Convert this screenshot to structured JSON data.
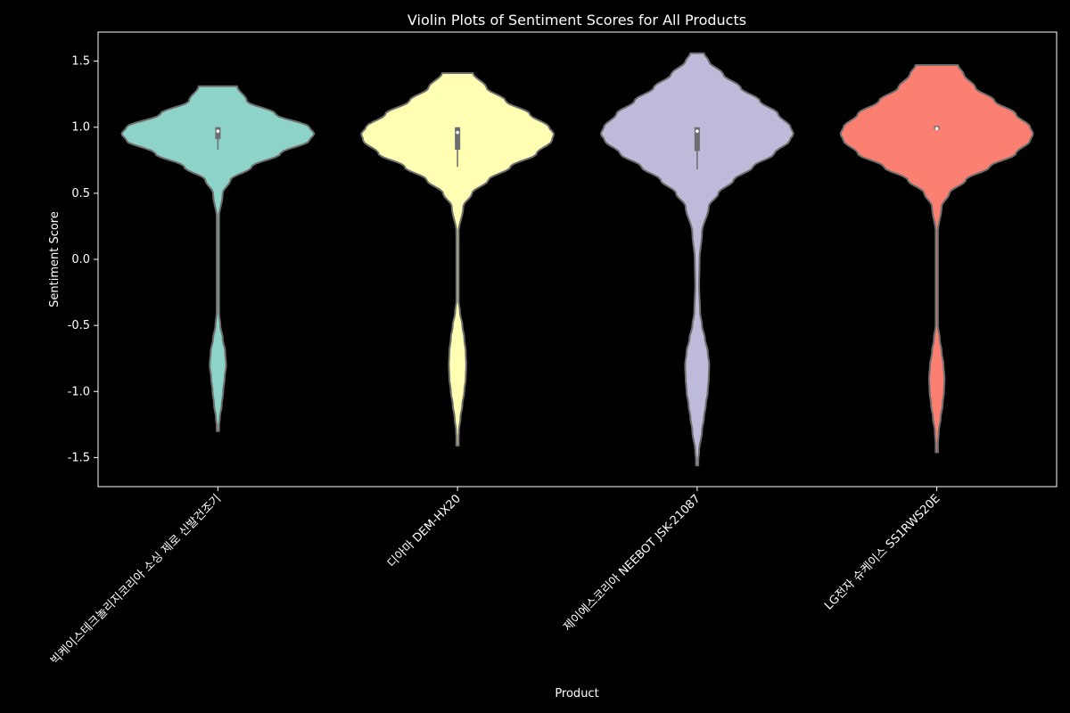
{
  "chart_data": {
    "type": "violin",
    "title": "Violin Plots of Sentiment Scores for All Products",
    "xlabel": "Product",
    "ylabel": "Sentiment Score",
    "ylim": [
      -1.72,
      1.72
    ],
    "yticks": [
      -1.5,
      -1.0,
      -0.5,
      0.0,
      0.5,
      1.0,
      1.5
    ],
    "ytick_labels": [
      "-1.5",
      "-1.0",
      "-0.5",
      "0.0",
      "0.5",
      "1.0",
      "1.5"
    ],
    "grid": false,
    "categories": [
      "빅케이스테크놀리지코리아 소싱 제로 신발건조기",
      "디아마 DEM-HX20",
      "제이에스코리아 NEEBOT JSK-21087",
      "LG전자 슈케이스 SS1RWS20E"
    ],
    "series": [
      {
        "category": "빅케이스테크놀리지코리아 소싱 제로 신발건조기",
        "color": "#8dd3c7",
        "range": [
          -1.3,
          1.31
        ],
        "median": 0.97,
        "q1": 0.91,
        "q3": 1.0,
        "whisker_low": 0.83,
        "whisker_high": 1.0,
        "density": [
          [
            -1.3,
            0.004
          ],
          [
            -1.2,
            0.02
          ],
          [
            -1.1,
            0.04
          ],
          [
            -1.0,
            0.055
          ],
          [
            -0.9,
            0.07
          ],
          [
            -0.8,
            0.085
          ],
          [
            -0.7,
            0.075
          ],
          [
            -0.6,
            0.05
          ],
          [
            -0.5,
            0.025
          ],
          [
            -0.4,
            0.012
          ],
          [
            -0.3,
            0.005
          ],
          [
            0.0,
            0.003
          ],
          [
            0.3,
            0.008
          ],
          [
            0.5,
            0.05
          ],
          [
            0.6,
            0.13
          ],
          [
            0.7,
            0.35
          ],
          [
            0.8,
            0.65
          ],
          [
            0.9,
            0.95
          ],
          [
            0.95,
            1.0
          ],
          [
            1.0,
            0.95
          ],
          [
            1.1,
            0.6
          ],
          [
            1.2,
            0.3
          ],
          [
            1.31,
            0.2
          ]
        ]
      },
      {
        "category": "디아마 DEM-HX20",
        "color": "#ffffb3",
        "range": [
          -1.41,
          1.41
        ],
        "median": 0.96,
        "q1": 0.83,
        "q3": 1.0,
        "whisker_low": 0.7,
        "whisker_high": 1.0,
        "density": [
          [
            -1.41,
            0.004
          ],
          [
            -1.3,
            0.015
          ],
          [
            -1.2,
            0.03
          ],
          [
            -1.1,
            0.05
          ],
          [
            -1.0,
            0.07
          ],
          [
            -0.9,
            0.085
          ],
          [
            -0.8,
            0.09
          ],
          [
            -0.7,
            0.085
          ],
          [
            -0.6,
            0.07
          ],
          [
            -0.5,
            0.05
          ],
          [
            -0.4,
            0.025
          ],
          [
            -0.3,
            0.01
          ],
          [
            0.0,
            0.004
          ],
          [
            0.2,
            0.01
          ],
          [
            0.4,
            0.06
          ],
          [
            0.5,
            0.15
          ],
          [
            0.6,
            0.32
          ],
          [
            0.7,
            0.55
          ],
          [
            0.8,
            0.82
          ],
          [
            0.9,
            0.98
          ],
          [
            0.95,
            1.0
          ],
          [
            1.0,
            0.95
          ],
          [
            1.1,
            0.75
          ],
          [
            1.2,
            0.5
          ],
          [
            1.3,
            0.3
          ],
          [
            1.41,
            0.16
          ]
        ]
      },
      {
        "category": "제이에스코리아 NEEBOT JSK-21087",
        "color": "#bebada",
        "range": [
          -1.56,
          1.56
        ],
        "median": 0.97,
        "q1": 0.82,
        "q3": 1.0,
        "whisker_low": 0.68,
        "whisker_high": 1.0,
        "density": [
          [
            -1.56,
            0.004
          ],
          [
            -1.45,
            0.02
          ],
          [
            -1.3,
            0.05
          ],
          [
            -1.2,
            0.07
          ],
          [
            -1.1,
            0.09
          ],
          [
            -1.0,
            0.11
          ],
          [
            -0.9,
            0.12
          ],
          [
            -0.8,
            0.125
          ],
          [
            -0.7,
            0.11
          ],
          [
            -0.6,
            0.08
          ],
          [
            -0.5,
            0.05
          ],
          [
            -0.4,
            0.03
          ],
          [
            -0.2,
            0.02
          ],
          [
            0.0,
            0.025
          ],
          [
            0.2,
            0.05
          ],
          [
            0.4,
            0.12
          ],
          [
            0.5,
            0.22
          ],
          [
            0.6,
            0.38
          ],
          [
            0.7,
            0.58
          ],
          [
            0.8,
            0.8
          ],
          [
            0.9,
            0.96
          ],
          [
            0.95,
            1.0
          ],
          [
            1.0,
            0.97
          ],
          [
            1.1,
            0.84
          ],
          [
            1.2,
            0.65
          ],
          [
            1.3,
            0.45
          ],
          [
            1.4,
            0.27
          ],
          [
            1.5,
            0.12
          ],
          [
            1.56,
            0.07
          ]
        ]
      },
      {
        "category": "LG전자 슈케이스 SS1RWS20E",
        "color": "#fb8072",
        "range": [
          -1.46,
          1.47
        ],
        "median": 0.99,
        "q1": 0.98,
        "q3": 1.01,
        "whisker_low": 0.98,
        "whisker_high": 1.01,
        "density": [
          [
            -1.46,
            0.004
          ],
          [
            -1.3,
            0.02
          ],
          [
            -1.2,
            0.04
          ],
          [
            -1.1,
            0.06
          ],
          [
            -1.0,
            0.075
          ],
          [
            -0.9,
            0.08
          ],
          [
            -0.8,
            0.07
          ],
          [
            -0.7,
            0.05
          ],
          [
            -0.6,
            0.03
          ],
          [
            -0.5,
            0.012
          ],
          [
            -0.3,
            0.004
          ],
          [
            0.0,
            0.003
          ],
          [
            0.2,
            0.01
          ],
          [
            0.4,
            0.05
          ],
          [
            0.5,
            0.13
          ],
          [
            0.6,
            0.3
          ],
          [
            0.7,
            0.55
          ],
          [
            0.8,
            0.82
          ],
          [
            0.9,
            0.97
          ],
          [
            0.95,
            1.0
          ],
          [
            1.0,
            0.97
          ],
          [
            1.1,
            0.82
          ],
          [
            1.2,
            0.6
          ],
          [
            1.3,
            0.4
          ],
          [
            1.4,
            0.28
          ],
          [
            1.47,
            0.22
          ]
        ]
      }
    ]
  }
}
